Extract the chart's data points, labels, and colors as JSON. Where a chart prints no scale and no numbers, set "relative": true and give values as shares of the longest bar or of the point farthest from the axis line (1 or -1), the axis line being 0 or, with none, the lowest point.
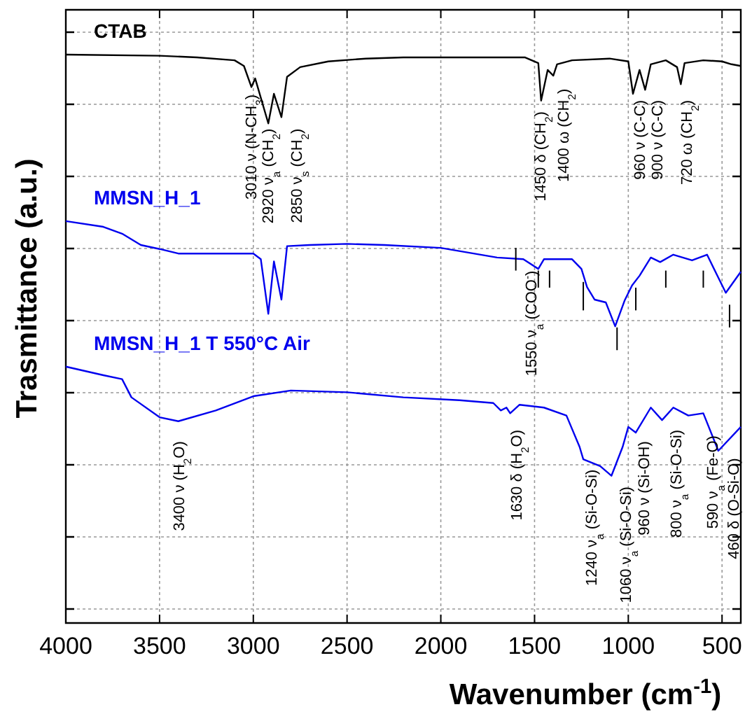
{
  "chart_data": {
    "type": "line",
    "relative": true,
    "xlabel": "Wavenumber (cm$^{-1}$)",
    "ylabel": "Trasmittance (a.u.)",
    "xlim": [
      4000,
      400
    ],
    "xticks": [
      4000,
      3500,
      3000,
      2500,
      2000,
      1500,
      1000,
      500
    ],
    "grid": true,
    "legend": "top left",
    "marker": "none",
    "line_style": "solid",
    "series": [
      {
        "name": "CTAB",
        "color": "#000000",
        "x": [
          4000,
          3500,
          3300,
          3100,
          3050,
          3010,
          2990,
          2920,
          2890,
          2850,
          2820,
          2750,
          2600,
          2400,
          2200,
          1800,
          1550,
          1480,
          1465,
          1430,
          1400,
          1380,
          1300,
          1100,
          1000,
          975,
          940,
          910,
          880,
          800,
          740,
          720,
          700,
          600,
          500,
          450,
          400
        ],
        "values": [
          1.0,
          0.998,
          0.995,
          0.99,
          0.98,
          0.943,
          0.958,
          0.879,
          0.931,
          0.89,
          0.961,
          0.978,
          0.988,
          0.993,
          0.995,
          0.995,
          0.995,
          0.985,
          0.919,
          0.973,
          0.963,
          0.983,
          0.99,
          0.993,
          0.988,
          0.931,
          0.973,
          0.938,
          0.983,
          0.99,
          0.978,
          0.948,
          0.985,
          0.99,
          0.988,
          0.983,
          0.98
        ]
      },
      {
        "name": "MMSN_H_1",
        "color": "#0000ee",
        "x": [
          4000,
          3800,
          3700,
          3600,
          3500,
          3400,
          3300,
          3000,
          2960,
          2920,
          2890,
          2850,
          2820,
          2700,
          2500,
          2300,
          2000,
          1700,
          1560,
          1480,
          1450,
          1300,
          1250,
          1220,
          1180,
          1120,
          1070,
          1020,
          980,
          940,
          880,
          830,
          760,
          660,
          580,
          480,
          400
        ],
        "values": [
          0.707,
          0.697,
          0.685,
          0.665,
          0.658,
          0.65,
          0.65,
          0.65,
          0.64,
          0.544,
          0.636,
          0.569,
          0.663,
          0.665,
          0.667,
          0.665,
          0.66,
          0.643,
          0.64,
          0.623,
          0.64,
          0.64,
          0.623,
          0.591,
          0.569,
          0.564,
          0.522,
          0.567,
          0.594,
          0.611,
          0.643,
          0.635,
          0.648,
          0.638,
          0.648,
          0.581,
          0.618
        ]
      },
      {
        "name": "MMSN_H_1 T 550°C Air",
        "color": "#0000ee",
        "x": [
          4000,
          3800,
          3700,
          3650,
          3500,
          3400,
          3200,
          3000,
          2800,
          2500,
          2200,
          1900,
          1720,
          1680,
          1650,
          1630,
          1580,
          1450,
          1330,
          1260,
          1240,
          1150,
          1090,
          1030,
          1000,
          960,
          880,
          820,
          760,
          680,
          600,
          520,
          400
        ],
        "values": [
          0.451,
          0.436,
          0.429,
          0.397,
          0.362,
          0.355,
          0.374,
          0.399,
          0.409,
          0.406,
          0.397,
          0.392,
          0.387,
          0.374,
          0.379,
          0.369,
          0.384,
          0.379,
          0.365,
          0.31,
          0.288,
          0.276,
          0.259,
          0.31,
          0.345,
          0.335,
          0.379,
          0.357,
          0.379,
          0.365,
          0.369,
          0.303,
          0.345
        ]
      }
    ],
    "annotations": [
      "3010 ν (N-CH$_{3}$)",
      "2920 ν$_{a}$ (CH$_{2}$)",
      "2850 ν$_{s}$ (CH$_{2}$)",
      "1450 δ (CH$_{2}$)",
      "1400 ω (CH$_{2}$)",
      "960 ν (C-C)",
      "900 ν (C-C)",
      "720 ω (CH$_{2}$)",
      "1550 ν$_{a}$ (COO$^{-}$)",
      "3400 ν (H$_{2}$O)",
      "1630  δ (H$_{2}$O)",
      "1240 ν$_{a}$ (Si-O-Si)",
      "1060 ν$_{a}$ (Si-O-Si)",
      "960 ν (Si-OH)",
      "800 ν$_{a}$ (Si-O-Si)",
      "590 ν$_{a}$ (Fe-O)",
      "460 δ (O-Si-O)"
    ]
  }
}
